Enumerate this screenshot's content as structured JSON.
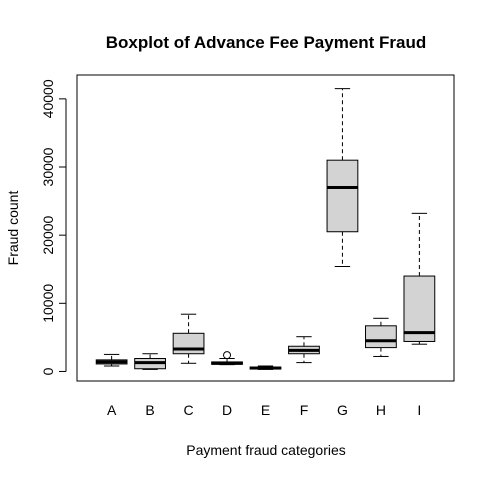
{
  "chart_data": {
    "type": "boxplot",
    "title": "Boxplot of Advance Fee Payment Fraud",
    "xlabel": "Payment fraud categories",
    "ylabel": "Fraud count",
    "ylim": [
      -1400,
      43500
    ],
    "yticks": [
      0,
      10000,
      20000,
      30000,
      40000
    ],
    "yticklabels": [
      "0",
      "10000",
      "20000",
      "30000",
      "40000"
    ],
    "grid": false,
    "legend": "none",
    "box_fill": "#d3d3d3",
    "categories": [
      "A",
      "B",
      "C",
      "D",
      "E",
      "F",
      "G",
      "H",
      "I"
    ],
    "boxes": [
      {
        "label": "A",
        "whisker_low": 800,
        "q1": 1100,
        "median": 1400,
        "q3": 1700,
        "whisker_high": 2500,
        "outliers": []
      },
      {
        "label": "B",
        "whisker_low": 300,
        "q1": 400,
        "median": 1300,
        "q3": 1900,
        "whisker_high": 2600,
        "outliers": []
      },
      {
        "label": "C",
        "whisker_low": 1200,
        "q1": 2600,
        "median": 3300,
        "q3": 5600,
        "whisker_high": 8400,
        "outliers": []
      },
      {
        "label": "D",
        "whisker_low": 1000,
        "q1": 1050,
        "median": 1200,
        "q3": 1400,
        "whisker_high": 1900,
        "outliers": [
          2400
        ]
      },
      {
        "label": "E",
        "whisker_low": 300,
        "q1": 350,
        "median": 500,
        "q3": 650,
        "whisker_high": 800,
        "outliers": []
      },
      {
        "label": "F",
        "whisker_low": 1300,
        "q1": 2600,
        "median": 3100,
        "q3": 3700,
        "whisker_high": 5100,
        "outliers": []
      },
      {
        "label": "G",
        "whisker_low": 15400,
        "q1": 20500,
        "median": 27000,
        "q3": 31000,
        "whisker_high": 41500,
        "outliers": []
      },
      {
        "label": "H",
        "whisker_low": 2200,
        "q1": 3500,
        "median": 4500,
        "q3": 6700,
        "whisker_high": 7800,
        "outliers": []
      },
      {
        "label": "I",
        "whisker_low": 4000,
        "q1": 4400,
        "median": 5700,
        "q3": 14000,
        "whisker_high": 23200,
        "outliers": []
      }
    ]
  }
}
